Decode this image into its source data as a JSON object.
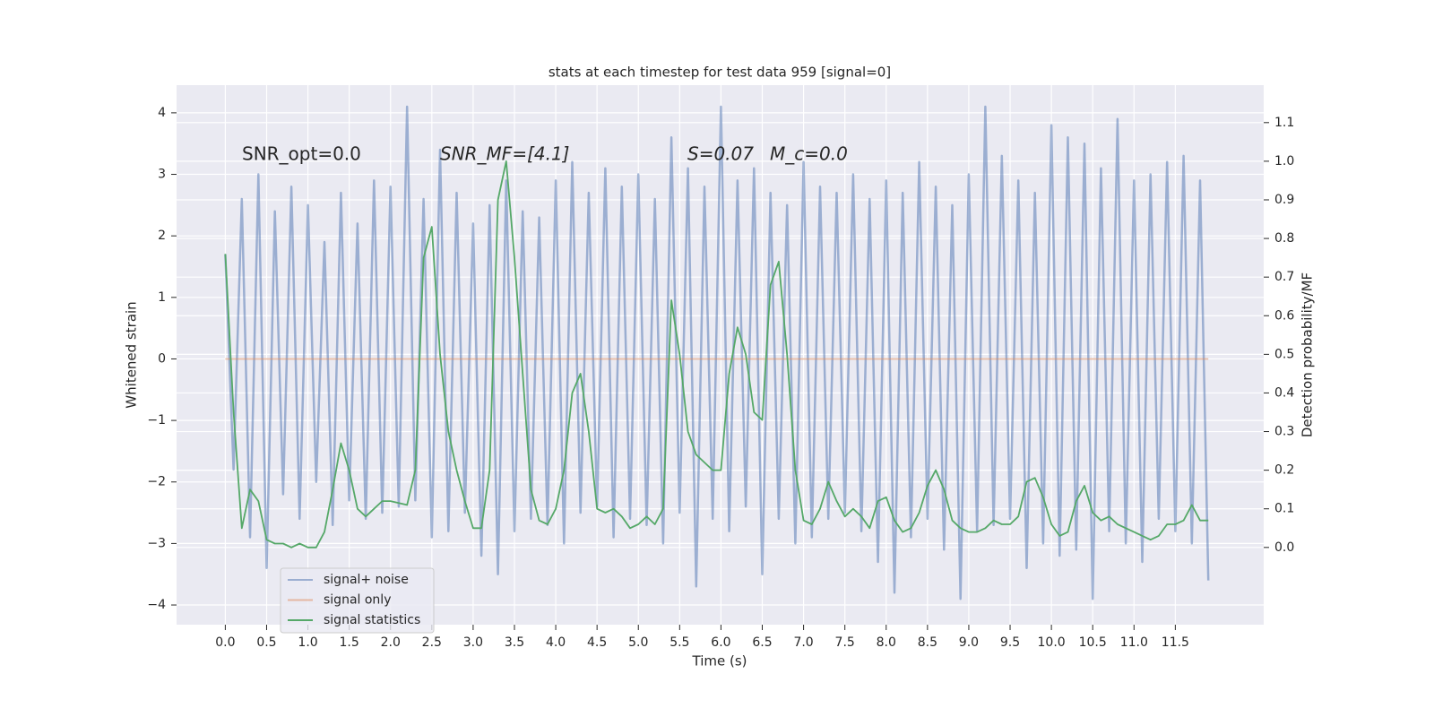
{
  "chart_data": {
    "type": "line",
    "title": "stats at each timestep for test data 959 [signal=0]",
    "xlabel": "Time (s)",
    "ylabel": "Whitened strain",
    "y2label": "Detection probability/MF",
    "annotations": [
      "SNR_opt=0.0",
      "SNR_MF=[4.1]",
      "S=0.07",
      "M_c=0.0"
    ],
    "legend": "lower left",
    "grid": true,
    "xlim": [
      -0.59,
      12.57
    ],
    "ylim": [
      -4.32,
      4.45
    ],
    "y2lim": [
      -0.2,
      1.197
    ],
    "xticks": [
      {
        "value": 0,
        "label": "0.0"
      },
      0.5,
      {
        "value": 1,
        "label": "1.0"
      },
      1.5,
      {
        "value": 2,
        "label": "2.0"
      },
      2.5,
      {
        "value": 3,
        "label": "3.0"
      },
      3.5,
      {
        "value": 4,
        "label": "4.0"
      },
      4.5,
      {
        "value": 5,
        "label": "5.0"
      },
      5.5,
      {
        "value": 6,
        "label": "6.0"
      },
      6.5,
      {
        "value": 7,
        "label": "7.0"
      },
      7.5,
      {
        "value": 8,
        "label": "8.0"
      },
      8.5,
      {
        "value": 9,
        "label": "9.0"
      },
      9.5,
      {
        "value": 10,
        "label": "10.0"
      },
      10.5,
      {
        "value": 11,
        "label": "11.0"
      },
      11.5
    ],
    "yticks": [
      {
        "value": -4,
        "label": "−4"
      },
      {
        "value": -3,
        "label": "−3"
      },
      {
        "value": -2,
        "label": "−2"
      },
      {
        "value": -1,
        "label": "−1"
      },
      0,
      1,
      2,
      3,
      4
    ],
    "y2ticks": [
      {
        "value": 0,
        "label": "0.0"
      },
      0.1,
      0.2,
      0.3,
      0.4,
      0.5,
      0.6,
      0.7,
      0.8,
      0.9,
      {
        "value": 1,
        "label": "1.0"
      },
      1.1
    ],
    "x": [
      0.0,
      0.1,
      0.2,
      0.3,
      0.4,
      0.5,
      0.6,
      0.7,
      0.8,
      0.9,
      1.0,
      1.1,
      1.2,
      1.3,
      1.4,
      1.5,
      1.6,
      1.7,
      1.8,
      1.9,
      2.0,
      2.1,
      2.2,
      2.3,
      2.4,
      2.5,
      2.6,
      2.7,
      2.8,
      2.9,
      3.0,
      3.1,
      3.2,
      3.3,
      3.4,
      3.5,
      3.6,
      3.7,
      3.8,
      3.9,
      4.0,
      4.1,
      4.2,
      4.3,
      4.4,
      4.5,
      4.6,
      4.7,
      4.8,
      4.9,
      5.0,
      5.1,
      5.2,
      5.3,
      5.4,
      5.5,
      5.6,
      5.7,
      5.8,
      5.9,
      6.0,
      6.1,
      6.2,
      6.3,
      6.4,
      6.5,
      6.6,
      6.7,
      6.8,
      6.9,
      7.0,
      7.1,
      7.2,
      7.3,
      7.4,
      7.5,
      7.6,
      7.7,
      7.8,
      7.9,
      8.0,
      8.1,
      8.2,
      8.3,
      8.4,
      8.5,
      8.6,
      8.7,
      8.8,
      8.9,
      9.0,
      9.1,
      9.2,
      9.3,
      9.4,
      9.5,
      9.6,
      9.7,
      9.8,
      9.9,
      10.0,
      10.1,
      10.2,
      10.3,
      10.4,
      10.5,
      10.6,
      10.7,
      10.8,
      10.9,
      11.0,
      11.1,
      11.2,
      11.3,
      11.4,
      11.5,
      11.6,
      11.7,
      11.8,
      11.9
    ],
    "series": [
      {
        "name": "signal+ noise",
        "color": "#4c72b0",
        "axis": "y",
        "values": [
          1.7,
          -1.8,
          2.6,
          -2.9,
          3.0,
          -3.4,
          2.4,
          -2.2,
          2.8,
          -2.6,
          2.5,
          -2.0,
          1.9,
          -2.7,
          2.7,
          -2.3,
          2.2,
          -2.6,
          2.9,
          -2.5,
          2.8,
          -2.4,
          4.1,
          -2.3,
          2.6,
          -2.9,
          3.4,
          -2.8,
          2.7,
          -2.5,
          2.2,
          -3.2,
          2.5,
          -3.5,
          2.9,
          -2.8,
          2.4,
          -2.6,
          2.3,
          -2.7,
          2.9,
          -3.0,
          3.2,
          -2.5,
          2.7,
          -2.4,
          3.1,
          -2.9,
          2.8,
          -2.6,
          3.0,
          -2.7,
          2.6,
          -3.0,
          3.6,
          -2.5,
          3.1,
          -3.7,
          2.8,
          -2.6,
          4.1,
          -2.8,
          2.9,
          -2.4,
          3.1,
          -3.5,
          2.7,
          -2.6,
          2.5,
          -3.0,
          3.2,
          -2.9,
          2.8,
          -2.6,
          2.7,
          -2.5,
          3.0,
          -2.8,
          2.6,
          -3.3,
          2.9,
          -3.8,
          2.7,
          -2.9,
          3.2,
          -2.6,
          2.8,
          -3.1,
          2.5,
          -3.9,
          3.0,
          -2.8,
          4.1,
          -2.7,
          3.3,
          -2.6,
          2.9,
          -3.4,
          2.7,
          -3.0,
          3.8,
          -3.2,
          3.6,
          -3.1,
          3.5,
          -3.9,
          3.1,
          -2.8,
          3.9,
          -3.0,
          2.9,
          -3.3,
          3.0,
          -2.6,
          3.2,
          -2.8,
          3.3,
          -3.0,
          2.9,
          -3.6
        ]
      },
      {
        "name": "signal only",
        "color": "#dd8452",
        "axis": "y",
        "values": [
          0,
          0,
          0,
          0,
          0,
          0,
          0,
          0,
          0,
          0,
          0,
          0,
          0,
          0,
          0,
          0,
          0,
          0,
          0,
          0,
          0,
          0,
          0,
          0,
          0,
          0,
          0,
          0,
          0,
          0,
          0,
          0,
          0,
          0,
          0,
          0,
          0,
          0,
          0,
          0,
          0,
          0,
          0,
          0,
          0,
          0,
          0,
          0,
          0,
          0,
          0,
          0,
          0,
          0,
          0,
          0,
          0,
          0,
          0,
          0,
          0,
          0,
          0,
          0,
          0,
          0,
          0,
          0,
          0,
          0,
          0,
          0,
          0,
          0,
          0,
          0,
          0,
          0,
          0,
          0,
          0,
          0,
          0,
          0,
          0,
          0,
          0,
          0,
          0,
          0,
          0,
          0,
          0,
          0,
          0,
          0,
          0,
          0,
          0,
          0,
          0,
          0,
          0,
          0,
          0,
          0,
          0,
          0,
          0,
          0,
          0,
          0,
          0,
          0,
          0,
          0,
          0,
          0,
          0,
          0
        ]
      },
      {
        "name": "signal statistics",
        "color": "#55a868",
        "axis": "y2",
        "values": [
          0.76,
          0.35,
          0.05,
          0.15,
          0.12,
          0.02,
          0.01,
          0.01,
          0.0,
          0.01,
          0.0,
          0.0,
          0.04,
          0.15,
          0.27,
          0.2,
          0.1,
          0.08,
          0.1,
          0.12,
          0.12,
          0.115,
          0.11,
          0.2,
          0.75,
          0.83,
          0.5,
          0.3,
          0.2,
          0.12,
          0.05,
          0.05,
          0.2,
          0.9,
          1.0,
          0.75,
          0.45,
          0.15,
          0.07,
          0.06,
          0.1,
          0.2,
          0.4,
          0.45,
          0.3,
          0.1,
          0.09,
          0.1,
          0.08,
          0.05,
          0.06,
          0.08,
          0.06,
          0.1,
          0.64,
          0.5,
          0.3,
          0.24,
          0.22,
          0.2,
          0.2,
          0.45,
          0.57,
          0.5,
          0.35,
          0.33,
          0.68,
          0.74,
          0.5,
          0.2,
          0.07,
          0.06,
          0.1,
          0.17,
          0.12,
          0.08,
          0.1,
          0.08,
          0.05,
          0.12,
          0.13,
          0.07,
          0.04,
          0.05,
          0.09,
          0.16,
          0.2,
          0.15,
          0.07,
          0.05,
          0.04,
          0.04,
          0.05,
          0.07,
          0.06,
          0.06,
          0.08,
          0.17,
          0.18,
          0.13,
          0.06,
          0.03,
          0.04,
          0.12,
          0.16,
          0.09,
          0.07,
          0.08,
          0.06,
          0.05,
          0.04,
          0.03,
          0.02,
          0.03,
          0.06,
          0.06,
          0.07,
          0.11,
          0.07,
          0.07
        ]
      }
    ]
  }
}
